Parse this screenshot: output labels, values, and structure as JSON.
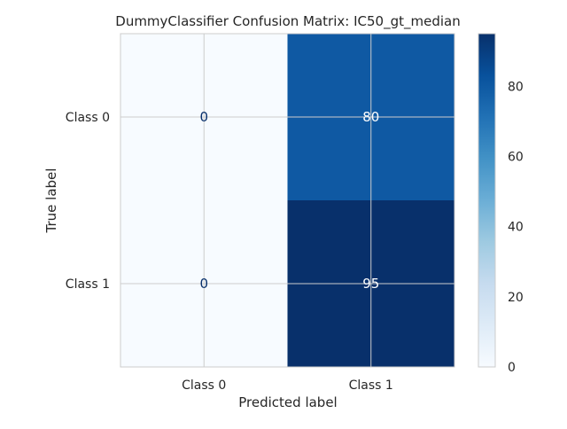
{
  "chart_data": {
    "type": "heatmap",
    "title": "DummyClassifier Confusion Matrix: IC50_gt_median",
    "xlabel": "Predicted label",
    "ylabel": "True label",
    "x_categories": [
      "Class 0",
      "Class 1"
    ],
    "y_categories": [
      "Class 0",
      "Class 1"
    ],
    "matrix": [
      [
        0,
        80
      ],
      [
        0,
        95
      ]
    ],
    "cell_labels": [
      [
        "0",
        "80"
      ],
      [
        "0",
        "95"
      ]
    ],
    "colormap": "Blues",
    "colors": {
      "low": "#f7fbff",
      "high": "#08306b",
      "text_on_light": "#08306b",
      "text_on_dark": "#ffffff"
    },
    "colorbar": {
      "range": [
        0,
        95
      ],
      "ticks": [
        0,
        20,
        40,
        60,
        80
      ],
      "tick_labels": [
        "0",
        "20",
        "40",
        "60",
        "80"
      ]
    },
    "grid": true
  }
}
